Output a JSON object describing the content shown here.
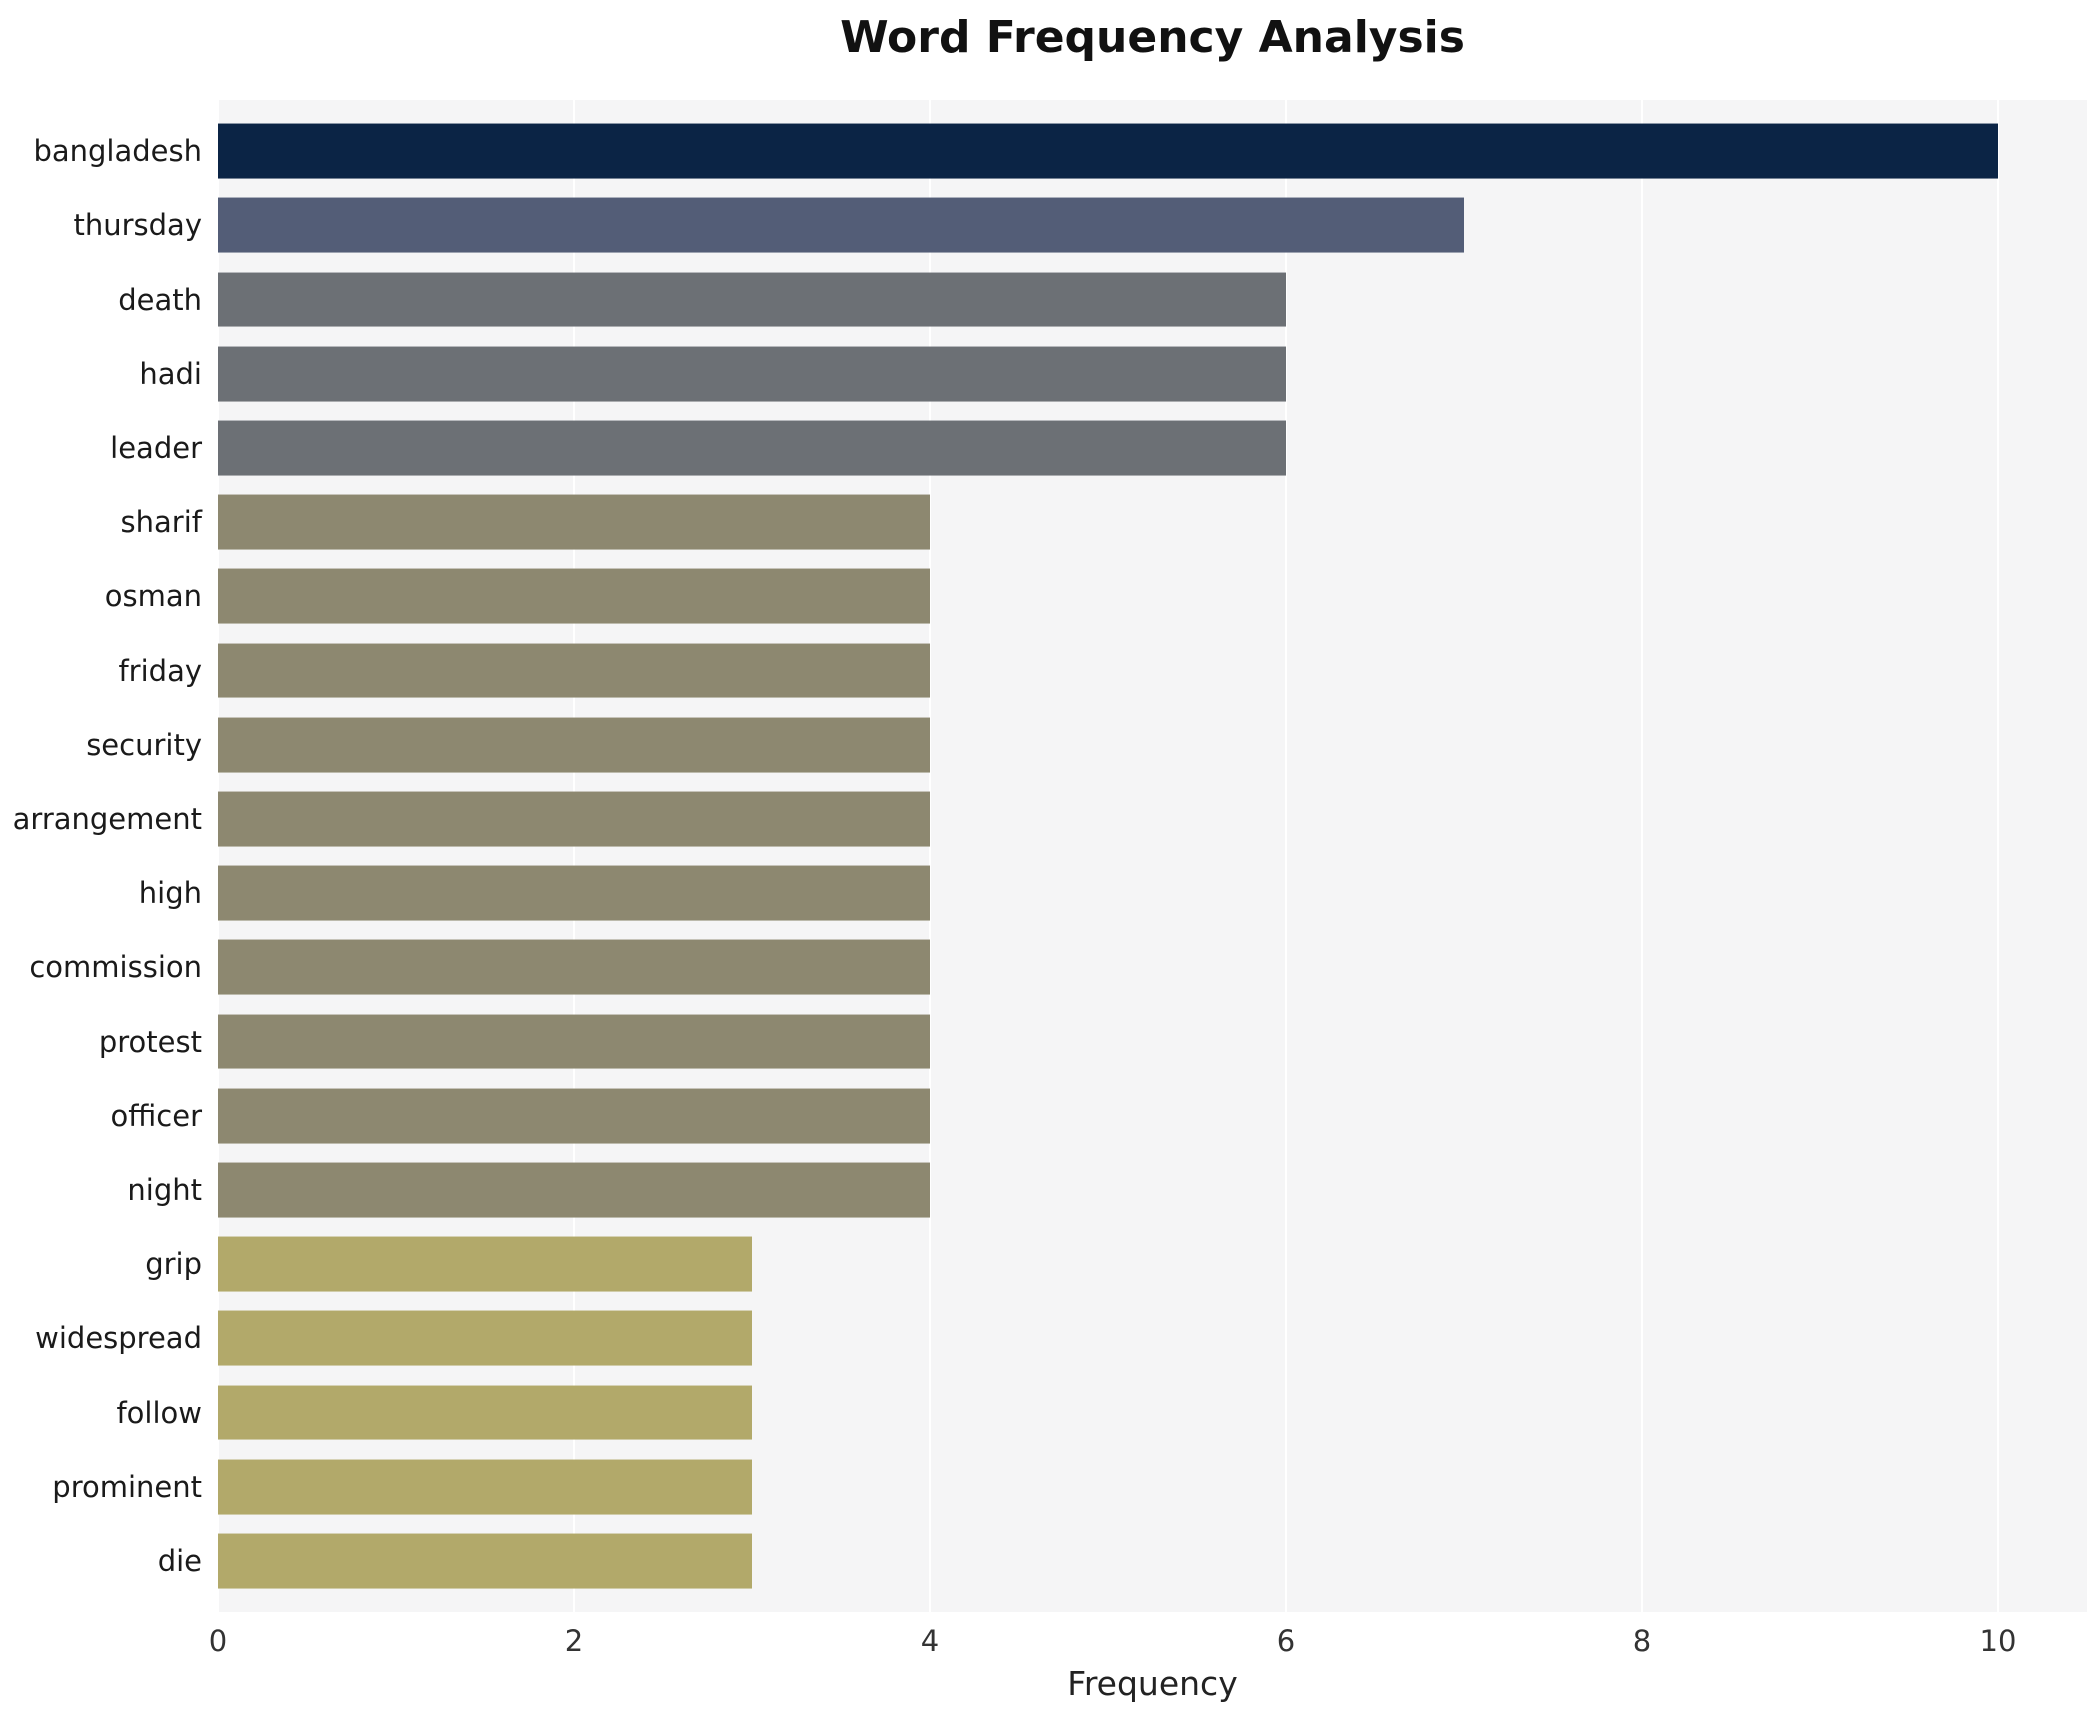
{
  "chart_data": {
    "type": "bar",
    "orientation": "horizontal",
    "title": "Word Frequency Analysis",
    "xlabel": "Frequency",
    "ylabel": "",
    "categories": [
      "bangladesh",
      "thursday",
      "death",
      "hadi",
      "leader",
      "sharif",
      "osman",
      "friday",
      "security",
      "arrangement",
      "high",
      "commission",
      "protest",
      "officer",
      "night",
      "grip",
      "widespread",
      "follow",
      "prominent",
      "die"
    ],
    "values": [
      10,
      7,
      6,
      6,
      6,
      4,
      4,
      4,
      4,
      4,
      4,
      4,
      4,
      4,
      4,
      3,
      3,
      3,
      3,
      3
    ],
    "bar_colors": [
      "#0b2445",
      "#535d77",
      "#6c7075",
      "#6c7075",
      "#6c7075",
      "#8d8870",
      "#8d8870",
      "#8d8870",
      "#8d8870",
      "#8d8870",
      "#8d8870",
      "#8d8870",
      "#8d8870",
      "#8d8870",
      "#8d8870",
      "#b2a96a",
      "#b2a96a",
      "#b2a96a",
      "#b2a96a",
      "#b2a96a"
    ],
    "xlim": [
      0,
      10.5
    ],
    "xticks": [
      0,
      2,
      4,
      6,
      8,
      10
    ],
    "grid": true,
    "gridline_color": "#ffffff",
    "plot_bg": "#f5f5f6",
    "legend": null
  }
}
